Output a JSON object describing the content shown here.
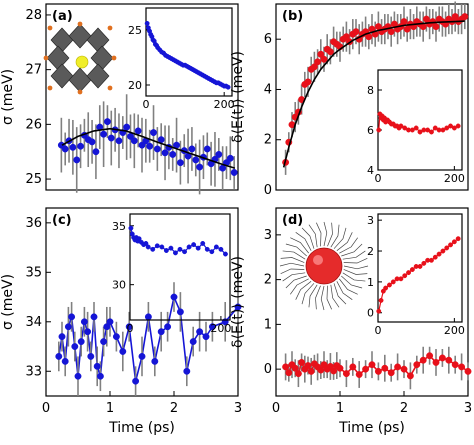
{
  "chart_data": [
    {
      "id": "a",
      "type": "scatter",
      "panel_label": "(a)",
      "ylabel": "σ (meV)",
      "xlim": [
        0,
        3
      ],
      "ylim": [
        24.8,
        28.2
      ],
      "yticks": [
        25,
        26,
        27,
        28
      ],
      "xticks": [],
      "marker_color": "#1515d6",
      "fit_color": "#000000",
      "x": [
        0.24,
        0.3,
        0.36,
        0.42,
        0.48,
        0.54,
        0.6,
        0.66,
        0.72,
        0.78,
        0.84,
        0.9,
        0.96,
        1.02,
        1.08,
        1.14,
        1.2,
        1.26,
        1.32,
        1.38,
        1.44,
        1.5,
        1.56,
        1.62,
        1.68,
        1.74,
        1.8,
        1.86,
        1.92,
        1.98,
        2.04,
        2.1,
        2.16,
        2.22,
        2.28,
        2.34,
        2.4,
        2.46,
        2.52,
        2.58,
        2.64,
        2.7,
        2.76,
        2.82,
        2.88,
        2.94
      ],
      "y": [
        25.62,
        25.55,
        25.7,
        25.58,
        25.35,
        25.6,
        25.8,
        25.72,
        25.68,
        25.5,
        25.95,
        25.82,
        26.05,
        25.75,
        25.9,
        25.7,
        25.85,
        25.95,
        25.78,
        25.7,
        25.88,
        25.62,
        25.7,
        25.6,
        25.85,
        25.55,
        25.72,
        25.48,
        25.58,
        25.45,
        25.62,
        25.3,
        25.52,
        25.42,
        25.55,
        25.35,
        25.22,
        25.4,
        25.55,
        25.28,
        25.36,
        25.45,
        25.2,
        25.3,
        25.38,
        25.12
      ],
      "err": [
        0.5,
        0.3,
        0.4,
        0.5,
        0.6,
        0.4,
        0.3,
        0.5,
        0.4,
        0.5,
        0.4,
        0.6,
        0.3,
        0.5,
        0.4,
        0.5,
        0.3,
        0.6,
        0.4,
        0.5,
        0.3,
        0.5,
        0.4,
        0.3,
        0.5,
        0.4,
        0.3,
        0.5,
        0.4,
        0.3,
        0.5,
        0.4,
        0.3,
        0.5,
        0.4,
        0.3,
        0.5,
        0.4,
        0.3,
        0.4,
        0.5,
        0.3,
        0.4,
        0.3,
        0.4,
        0.3
      ],
      "fit_x": [
        0.25,
        0.5,
        0.75,
        1.0,
        1.25,
        1.5,
        1.75,
        2.0,
        2.25,
        2.5,
        2.75,
        2.95
      ],
      "fit_y": [
        25.62,
        25.78,
        25.88,
        25.92,
        25.88,
        25.78,
        25.67,
        25.57,
        25.47,
        25.37,
        25.27,
        25.2
      ],
      "inset": {
        "xlim": [
          0,
          220
        ],
        "ylim": [
          19,
          27
        ],
        "yticks": [
          20,
          25
        ],
        "xticks": [
          0,
          200
        ],
        "x": [
          3,
          6,
          9,
          12,
          15,
          18,
          21,
          24,
          27,
          30,
          35,
          40,
          45,
          50,
          55,
          60,
          65,
          70,
          75,
          80,
          85,
          90,
          95,
          100,
          105,
          110,
          115,
          120,
          125,
          130,
          135,
          140,
          145,
          150,
          155,
          160,
          165,
          170,
          175,
          180,
          185,
          190,
          195,
          200,
          205,
          210
        ],
        "y": [
          25.6,
          25.2,
          24.9,
          24.6,
          24.4,
          24.1,
          24.0,
          23.7,
          23.6,
          23.4,
          23.2,
          23.0,
          22.9,
          22.7,
          22.6,
          22.5,
          22.4,
          22.3,
          22.2,
          22.1,
          22.0,
          21.9,
          21.8,
          21.8,
          21.7,
          21.6,
          21.5,
          21.4,
          21.3,
          21.2,
          21.1,
          21.0,
          20.9,
          20.8,
          20.7,
          20.6,
          20.5,
          20.4,
          20.3,
          20.2,
          20.2,
          20.1,
          20.0,
          19.9,
          19.9,
          19.8
        ]
      }
    },
    {
      "id": "b",
      "type": "scatter",
      "panel_label": "(b)",
      "ylabel": "δ⟨E(t)⟩ (meV)",
      "xlim": [
        0,
        3
      ],
      "ylim": [
        0,
        7.4
      ],
      "yticks": [
        0,
        2,
        4,
        6
      ],
      "xticks": [],
      "marker_color": "#e8101a",
      "fit_color": "#000000",
      "x": [
        0.15,
        0.2,
        0.25,
        0.3,
        0.35,
        0.4,
        0.45,
        0.5,
        0.55,
        0.6,
        0.65,
        0.7,
        0.75,
        0.8,
        0.85,
        0.9,
        0.95,
        1.0,
        1.05,
        1.1,
        1.15,
        1.2,
        1.25,
        1.3,
        1.35,
        1.4,
        1.45,
        1.5,
        1.55,
        1.6,
        1.65,
        1.7,
        1.75,
        1.8,
        1.85,
        1.9,
        1.95,
        2.0,
        2.05,
        2.1,
        2.15,
        2.2,
        2.25,
        2.3,
        2.35,
        2.4,
        2.45,
        2.5,
        2.55,
        2.6,
        2.65,
        2.7,
        2.75,
        2.8,
        2.85,
        2.9,
        2.95
      ],
      "y": [
        1.1,
        1.9,
        2.6,
        2.9,
        3.1,
        3.6,
        4.2,
        4.3,
        4.8,
        4.9,
        5.1,
        5.4,
        5.2,
        5.6,
        5.5,
        5.9,
        5.8,
        5.7,
        6.0,
        6.1,
        5.9,
        6.2,
        6.3,
        6.0,
        6.2,
        6.3,
        6.1,
        6.4,
        6.2,
        6.5,
        6.3,
        6.4,
        6.5,
        6.3,
        6.6,
        6.4,
        6.5,
        6.7,
        6.4,
        6.6,
        6.5,
        6.7,
        6.6,
        6.5,
        6.8,
        6.6,
        6.7,
        6.5,
        6.8,
        6.7,
        6.6,
        6.8,
        6.7,
        6.9,
        6.7,
        6.8,
        6.9
      ],
      "err": [
        0.5,
        0.4,
        0.5,
        0.6,
        0.5,
        0.6,
        0.5,
        0.6,
        0.5,
        0.6,
        0.5,
        0.6,
        0.5,
        0.6,
        0.5,
        0.6,
        0.5,
        0.6,
        0.5,
        0.6,
        0.5,
        0.6,
        0.5,
        0.6,
        0.5,
        0.6,
        0.5,
        0.6,
        0.5,
        0.6,
        0.5,
        0.6,
        0.5,
        0.6,
        0.5,
        0.6,
        0.5,
        0.6,
        0.5,
        0.6,
        0.5,
        0.6,
        0.5,
        0.6,
        0.5,
        0.6,
        0.5,
        0.6,
        0.5,
        0.6,
        0.5,
        0.6,
        0.5,
        0.6,
        0.5,
        0.6,
        0.5
      ],
      "fit_x": [
        0.12,
        0.2,
        0.3,
        0.4,
        0.5,
        0.6,
        0.7,
        0.8,
        0.9,
        1.0,
        1.2,
        1.4,
        1.6,
        1.8,
        2.0,
        2.2,
        2.4,
        2.6,
        2.8,
        2.95
      ],
      "fit_y": [
        0.9,
        1.7,
        2.6,
        3.3,
        3.9,
        4.4,
        4.8,
        5.1,
        5.4,
        5.6,
        5.95,
        6.2,
        6.35,
        6.45,
        6.55,
        6.6,
        6.65,
        6.68,
        6.7,
        6.72
      ],
      "inset": {
        "xlim": [
          0,
          220
        ],
        "ylim": [
          4,
          9
        ],
        "yticks": [
          4,
          6,
          8
        ],
        "xticks": [
          0,
          200
        ],
        "x": [
          2,
          5,
          8,
          11,
          14,
          17,
          20,
          25,
          30,
          35,
          40,
          45,
          50,
          55,
          60,
          70,
          80,
          90,
          100,
          110,
          120,
          130,
          140,
          150,
          160,
          170,
          180,
          190,
          200,
          210
        ],
        "y": [
          6.0,
          6.8,
          6.6,
          6.7,
          6.5,
          6.6,
          6.4,
          6.5,
          6.4,
          6.3,
          6.3,
          6.2,
          6.2,
          6.1,
          6.2,
          6.1,
          6.0,
          6.0,
          6.1,
          5.9,
          6.0,
          6.0,
          5.9,
          6.1,
          6.0,
          6.0,
          6.1,
          6.2,
          6.1,
          6.2
        ]
      }
    },
    {
      "id": "c",
      "type": "line",
      "panel_label": "(c)",
      "ylabel": "σ (meV)",
      "xlabel": "Time (ps)",
      "xlim": [
        0,
        3
      ],
      "ylim": [
        32.5,
        36.3
      ],
      "yticks": [
        33,
        34,
        35,
        36
      ],
      "xticks": [
        0,
        1,
        2,
        3
      ],
      "marker_color": "#1515d6",
      "x": [
        0.2,
        0.25,
        0.3,
        0.35,
        0.4,
        0.45,
        0.5,
        0.55,
        0.6,
        0.65,
        0.7,
        0.75,
        0.8,
        0.85,
        0.9,
        0.95,
        1.0,
        1.1,
        1.2,
        1.3,
        1.4,
        1.5,
        1.6,
        1.7,
        1.8,
        1.9,
        2.0,
        2.1,
        2.2,
        2.3,
        2.4,
        2.5,
        2.6,
        2.8,
        3.0
      ],
      "y": [
        33.3,
        33.7,
        33.2,
        33.9,
        34.1,
        33.5,
        32.9,
        33.6,
        34.0,
        33.8,
        33.3,
        34.1,
        33.1,
        32.9,
        33.6,
        33.9,
        34.0,
        33.7,
        33.4,
        33.9,
        32.8,
        33.3,
        34.1,
        33.2,
        33.8,
        33.9,
        34.5,
        34.2,
        33.0,
        33.6,
        33.8,
        33.7,
        33.9,
        34.0,
        34.3
      ],
      "err": [
        0.3,
        0.3,
        0.3,
        0.4,
        0.3,
        0.3,
        0.4,
        0.3,
        0.3,
        0.4,
        0.3,
        0.3,
        0.4,
        0.3,
        0.3,
        0.4,
        0.3,
        0.3,
        0.4,
        0.3,
        0.3,
        0.4,
        0.3,
        0.3,
        0.4,
        0.3,
        0.3,
        0.4,
        0.3,
        0.3,
        0.4,
        0.3,
        0.3,
        0.4,
        0.3
      ],
      "inset": {
        "xlim": [
          0,
          220
        ],
        "ylim": [
          27,
          36
        ],
        "yticks": [
          30,
          35
        ],
        "xticks": [
          0,
          200
        ],
        "x": [
          2,
          5,
          8,
          11,
          14,
          17,
          20,
          25,
          30,
          35,
          40,
          50,
          60,
          70,
          80,
          90,
          100,
          110,
          120,
          130,
          140,
          150,
          160,
          170,
          180,
          190,
          200,
          210
        ],
        "y": [
          34.8,
          34.3,
          34.0,
          33.8,
          34.0,
          33.7,
          33.9,
          33.6,
          33.4,
          33.5,
          33.2,
          33.0,
          33.3,
          33.2,
          32.9,
          33.1,
          32.7,
          33.0,
          32.8,
          33.2,
          33.4,
          33.1,
          33.5,
          33.0,
          32.8,
          33.2,
          33.0,
          32.6
        ]
      }
    },
    {
      "id": "d",
      "type": "line",
      "panel_label": "(d)",
      "ylabel": "δ⟨E(t)⟩ (meV)",
      "xlabel": "Time (ps)",
      "xlim": [
        0,
        3
      ],
      "ylim": [
        -0.6,
        3.6
      ],
      "yticks": [
        0,
        1,
        2,
        3
      ],
      "xticks": [
        0,
        1,
        2,
        3
      ],
      "marker_color": "#e8101a",
      "x": [
        0.15,
        0.2,
        0.25,
        0.3,
        0.35,
        0.4,
        0.45,
        0.5,
        0.55,
        0.6,
        0.65,
        0.7,
        0.75,
        0.8,
        0.85,
        0.9,
        0.95,
        1.0,
        1.1,
        1.2,
        1.3,
        1.4,
        1.5,
        1.6,
        1.7,
        1.8,
        1.9,
        2.0,
        2.1,
        2.2,
        2.3,
        2.4,
        2.5,
        2.6,
        2.7,
        2.8,
        2.9,
        3.0
      ],
      "y": [
        0.05,
        -0.08,
        0.1,
        0.02,
        -0.1,
        0.15,
        0.0,
        0.08,
        -0.05,
        0.12,
        0.05,
        -0.02,
        0.1,
        0.0,
        0.06,
        -0.04,
        0.08,
        0.02,
        -0.1,
        0.05,
        -0.12,
        0.0,
        0.1,
        -0.05,
        0.02,
        -0.08,
        0.05,
        0.0,
        -0.15,
        0.1,
        0.2,
        0.3,
        0.15,
        0.25,
        0.2,
        0.1,
        0.05,
        -0.05
      ],
      "err": [
        0.3,
        0.2,
        0.3,
        0.2,
        0.3,
        0.2,
        0.3,
        0.2,
        0.3,
        0.2,
        0.3,
        0.2,
        0.3,
        0.2,
        0.3,
        0.2,
        0.3,
        0.2,
        0.3,
        0.2,
        0.3,
        0.2,
        0.3,
        0.2,
        0.3,
        0.2,
        0.3,
        0.2,
        0.3,
        0.2,
        0.3,
        0.2,
        0.3,
        0.2,
        0.3,
        0.2,
        0.3,
        0.2
      ],
      "inset": {
        "xlim": [
          0,
          220
        ],
        "ylim": [
          -0.3,
          3.2
        ],
        "yticks": [
          0,
          1,
          2,
          3
        ],
        "xticks": [
          0,
          200
        ],
        "x": [
          2,
          8,
          14,
          20,
          30,
          40,
          50,
          60,
          70,
          80,
          90,
          100,
          110,
          120,
          130,
          140,
          150,
          160,
          170,
          180,
          190,
          200,
          210
        ],
        "y": [
          0.05,
          0.4,
          0.7,
          0.8,
          0.9,
          1.0,
          1.1,
          1.1,
          1.2,
          1.3,
          1.4,
          1.5,
          1.5,
          1.6,
          1.7,
          1.7,
          1.8,
          1.9,
          2.0,
          2.1,
          2.2,
          2.3,
          2.4
        ]
      }
    }
  ]
}
